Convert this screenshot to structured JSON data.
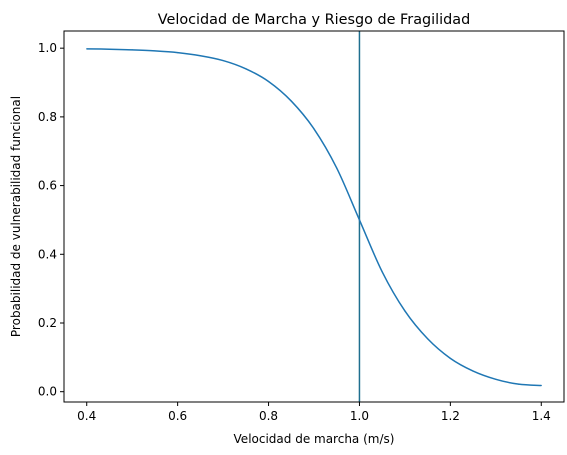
{
  "chart_data": {
    "type": "line",
    "title": "Velocidad de Marcha y Riesgo de Fragilidad",
    "xlabel": "Velocidad de marcha (m/s)",
    "ylabel": "Probabilidad de vulnerabilidad funcional",
    "xlim": [
      0.35,
      1.45
    ],
    "ylim": [
      -0.03,
      1.05
    ],
    "xticks": [
      "0.4",
      "0.6",
      "0.8",
      "1.0",
      "1.2",
      "1.4"
    ],
    "yticks": [
      "0.0",
      "0.2",
      "0.4",
      "0.6",
      "0.8",
      "1.0"
    ],
    "grid": false,
    "legend": "none",
    "series": [
      {
        "color": "#1f77b4",
        "points": [
          [
            0.4,
            0.998
          ],
          [
            0.45,
            0.997
          ],
          [
            0.5,
            0.995
          ],
          [
            0.55,
            0.992
          ],
          [
            0.6,
            0.987
          ],
          [
            0.65,
            0.978
          ],
          [
            0.7,
            0.964
          ],
          [
            0.75,
            0.94
          ],
          [
            0.8,
            0.903
          ],
          [
            0.85,
            0.846
          ],
          [
            0.9,
            0.765
          ],
          [
            0.95,
            0.651
          ],
          [
            1.0,
            0.5
          ],
          [
            1.05,
            0.349
          ],
          [
            1.1,
            0.235
          ],
          [
            1.15,
            0.154
          ],
          [
            1.2,
            0.097
          ],
          [
            1.25,
            0.06
          ],
          [
            1.3,
            0.036
          ],
          [
            1.35,
            0.022
          ],
          [
            1.4,
            0.018
          ]
        ]
      }
    ],
    "reference_lines": [
      {
        "orientation": "vertical",
        "x": 1.0,
        "color": "#1f6f8f"
      }
    ]
  }
}
